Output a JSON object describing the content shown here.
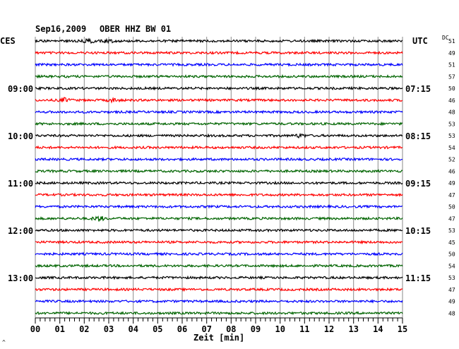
{
  "header": {
    "date": "Sep16,2009",
    "station": "OBER HHZ BW 01",
    "left_zone": "CES",
    "right_zone": "UTC",
    "dc_label": "DC"
  },
  "footer": {
    "xlabel": "Zeit [min]",
    "corner_mark": "^"
  },
  "chart_data": {
    "type": "line",
    "title": "Sep16,2009 OBER HHZ BW 01",
    "xlabel": "Zeit [min]",
    "xlim": [
      0,
      15
    ],
    "x_ticks": [
      "00",
      "01",
      "02",
      "03",
      "04",
      "05",
      "06",
      "07",
      "08",
      "09",
      "10",
      "11",
      "12",
      "13",
      "14",
      "15"
    ],
    "trace_colors": [
      "#000000",
      "#ff0000",
      "#0000ff",
      "#006400"
    ],
    "left_time_labels": [
      {
        "trace": 4,
        "label": "09:00"
      },
      {
        "trace": 8,
        "label": "10:00"
      },
      {
        "trace": 12,
        "label": "11:00"
      },
      {
        "trace": 16,
        "label": "12:00"
      },
      {
        "trace": 20,
        "label": "13:00"
      }
    ],
    "right_time_labels": [
      {
        "trace": 4,
        "label": "07:15"
      },
      {
        "trace": 8,
        "label": "08:15"
      },
      {
        "trace": 12,
        "label": "09:15"
      },
      {
        "trace": 16,
        "label": "10:15"
      },
      {
        "trace": 20,
        "label": "11:15"
      }
    ],
    "dc_values": [
      51,
      49,
      51,
      57,
      50,
      46,
      48,
      53,
      53,
      54,
      52,
      46,
      49,
      47,
      50,
      47,
      53,
      45,
      50,
      54,
      53,
      47,
      49,
      48
    ],
    "events": [
      {
        "trace": 0,
        "minute": 2.2,
        "strength": 2.2
      },
      {
        "trace": 0,
        "minute": 3.0,
        "strength": 1.6
      },
      {
        "trace": 5,
        "minute": 1.2,
        "strength": 2.4
      },
      {
        "trace": 5,
        "minute": 3.2,
        "strength": 2.0
      },
      {
        "trace": 8,
        "minute": 10.8,
        "strength": 1.8
      },
      {
        "trace": 15,
        "minute": 2.6,
        "strength": 3.0
      }
    ]
  }
}
